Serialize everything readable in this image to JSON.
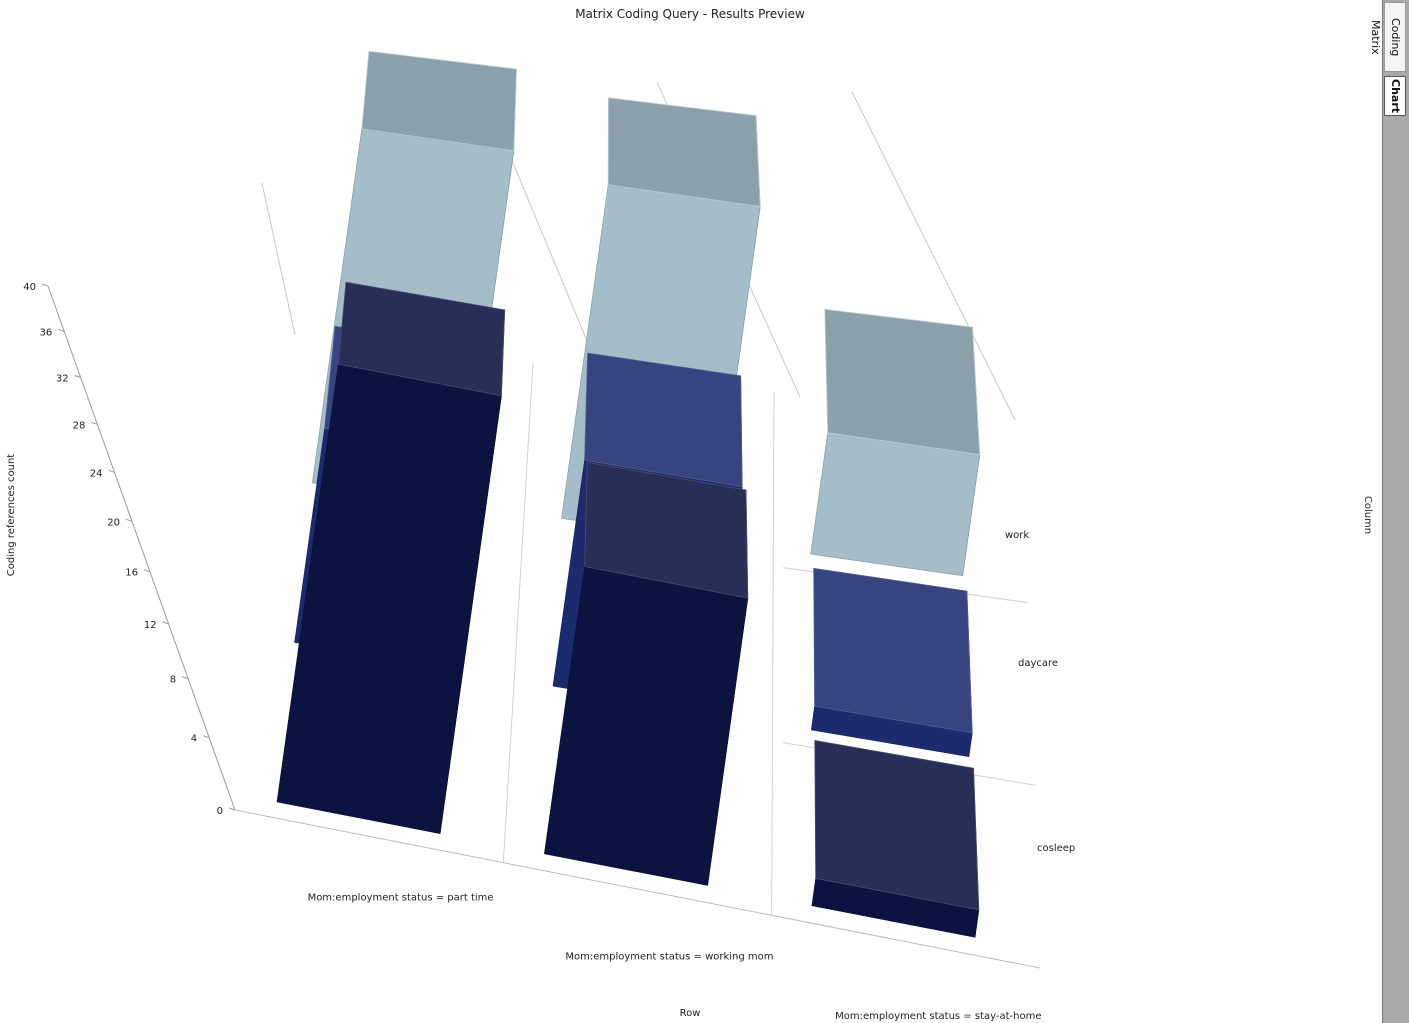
{
  "chart_data": {
    "type": "bar",
    "subtype": "3d-column-matrix",
    "title": "Matrix Coding Query - Results Preview",
    "ylabel": "Coding references count",
    "xlabel": "Row",
    "zlabel": "Column",
    "ylim": [
      0,
      40
    ],
    "yticks": [
      "0",
      "4",
      "8",
      "12",
      "16",
      "20",
      "24",
      "28",
      "32",
      "36",
      "40"
    ],
    "rows": [
      "Mom:employment status = part time",
      "Mom:employment status = working mom",
      "Mom:employment status = stay-at-home"
    ],
    "columns": [
      "work",
      "daycare",
      "cosleep"
    ],
    "series": [
      {
        "name": "work",
        "values": [
          35,
          33,
          12
        ],
        "color": "#a5bcc9"
      },
      {
        "name": "daycare",
        "values": [
          18,
          19,
          2
        ],
        "color": "#1c2a6e"
      },
      {
        "name": "cosleep",
        "values": [
          32,
          21,
          2
        ],
        "color": "#0b1340"
      }
    ]
  },
  "side_tabs": [
    {
      "label": "Coding Matrix",
      "active": false
    },
    {
      "label": "Chart",
      "active": true
    }
  ]
}
